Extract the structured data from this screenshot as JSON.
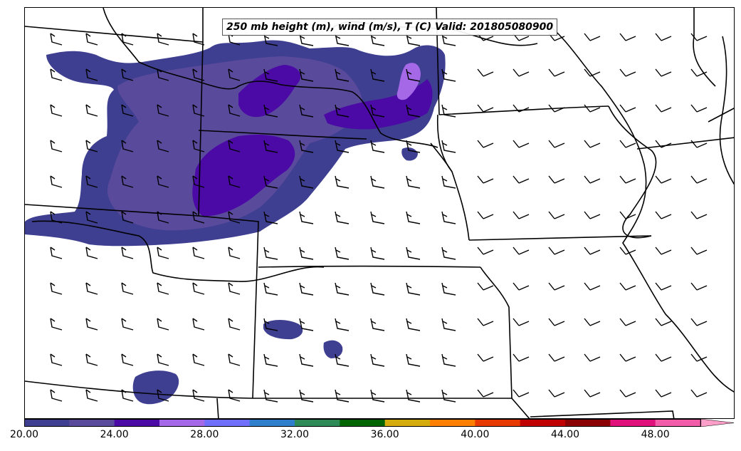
{
  "title": "250 mb height (m), wind (m/s), T (C) Valid: 201805080900",
  "colorbar": {
    "colors": [
      "#3f3f91",
      "#5a4a9c",
      "#4b0aa6",
      "#a569e8",
      "#6f6ffc",
      "#2f7fcc",
      "#2e8b57",
      "#006400",
      "#d4ac0d",
      "#ff8000",
      "#e83a00",
      "#c00000",
      "#8b0000",
      "#e0117a",
      "#f25ca8",
      "#ff9ec9"
    ],
    "tick_labels": [
      "20.00",
      "24.00",
      "28.00",
      "32.00",
      "36.00",
      "40.00",
      "44.00",
      "48.00"
    ]
  },
  "shading": {
    "dark": "#3f3f91",
    "mid": "#5a4a9c",
    "deep": "#4b0aa6",
    "light": "#a569e8"
  }
}
